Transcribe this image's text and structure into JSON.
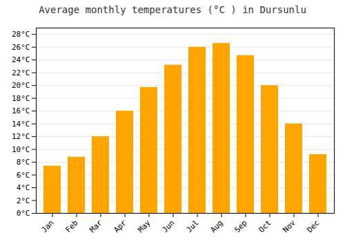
{
  "chart_data": {
    "type": "bar",
    "title": "Average monthly temperatures (°C ) in Dursunlu",
    "categories": [
      "Jan",
      "Feb",
      "Mar",
      "Apr",
      "May",
      "Jun",
      "Jul",
      "Aug",
      "Sep",
      "Oct",
      "Nov",
      "Dec"
    ],
    "values": [
      7.4,
      8.8,
      12.0,
      16.0,
      19.7,
      23.2,
      26.0,
      26.6,
      24.7,
      20.0,
      14.0,
      9.2
    ],
    "color": "#FFA500",
    "ylim": [
      0,
      29
    ],
    "yticks": [
      {
        "value": 0,
        "label": "0°C"
      },
      {
        "value": 2,
        "label": "2°C"
      },
      {
        "value": 4,
        "label": "4°C"
      },
      {
        "value": 6,
        "label": "6°C"
      },
      {
        "value": 8,
        "label": "8°C"
      },
      {
        "value": 10,
        "label": "10°C"
      },
      {
        "value": 12,
        "label": "12°C"
      },
      {
        "value": 14,
        "label": "14°C"
      },
      {
        "value": 16,
        "label": "16°C"
      },
      {
        "value": 18,
        "label": "18°C"
      },
      {
        "value": 20,
        "label": "20°C"
      },
      {
        "value": 22,
        "label": "22°C"
      },
      {
        "value": 24,
        "label": "24°C"
      },
      {
        "value": 26,
        "label": "26°C"
      },
      {
        "value": 28,
        "label": "28°C"
      }
    ],
    "grid": true
  }
}
